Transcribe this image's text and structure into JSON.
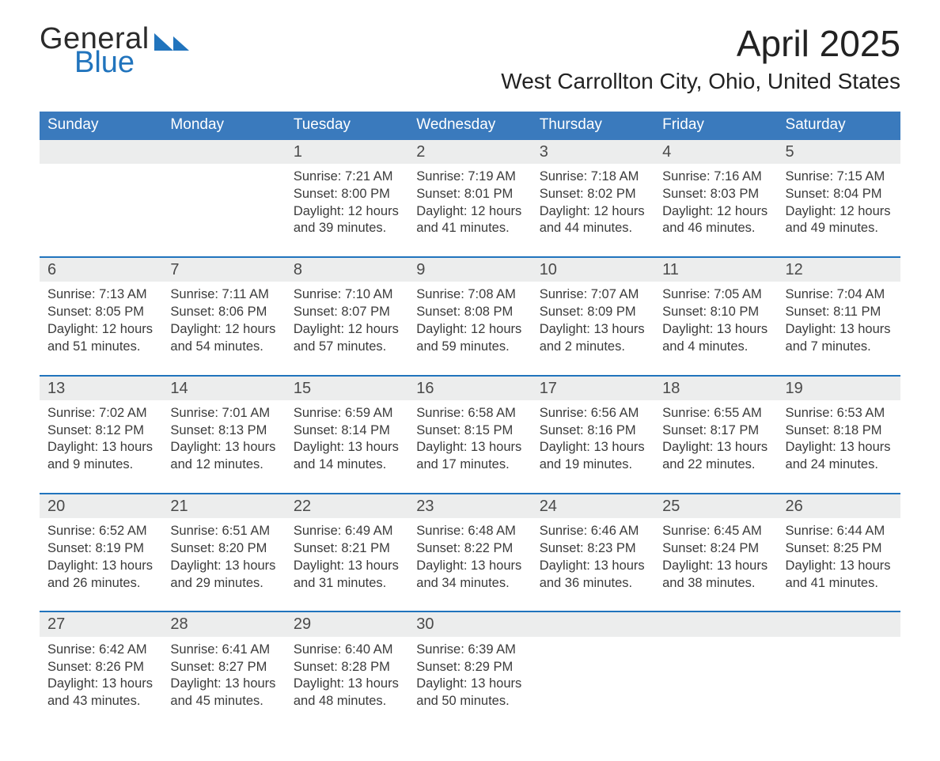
{
  "colors": {
    "header_blue": "#3a7abd",
    "accent_blue": "#2174bd",
    "row_stripe": "#eceded",
    "page_bg": "#ffffff",
    "text_black": "#232323",
    "text_gray": "#3b3b3b"
  },
  "logo": {
    "word1": "General",
    "word2": "Blue"
  },
  "month_title": "April 2025",
  "location": "West Carrollton City, Ohio, United States",
  "weekday_headers": [
    "Sunday",
    "Monday",
    "Tuesday",
    "Wednesday",
    "Thursday",
    "Friday",
    "Saturday"
  ],
  "labels": {
    "sunrise_prefix": "Sunrise: ",
    "sunset_prefix": "Sunset: ",
    "daylight_prefix": "Daylight: ",
    "daylight_middle": " hours",
    "daylight_and": "and ",
    "daylight_suffix": " minutes."
  },
  "weeks": [
    [
      null,
      null,
      {
        "day": "1",
        "sunrise": "7:21 AM",
        "sunset": "8:00 PM",
        "hrs": "12",
        "min": "39"
      },
      {
        "day": "2",
        "sunrise": "7:19 AM",
        "sunset": "8:01 PM",
        "hrs": "12",
        "min": "41"
      },
      {
        "day": "3",
        "sunrise": "7:18 AM",
        "sunset": "8:02 PM",
        "hrs": "12",
        "min": "44"
      },
      {
        "day": "4",
        "sunrise": "7:16 AM",
        "sunset": "8:03 PM",
        "hrs": "12",
        "min": "46"
      },
      {
        "day": "5",
        "sunrise": "7:15 AM",
        "sunset": "8:04 PM",
        "hrs": "12",
        "min": "49"
      }
    ],
    [
      {
        "day": "6",
        "sunrise": "7:13 AM",
        "sunset": "8:05 PM",
        "hrs": "12",
        "min": "51"
      },
      {
        "day": "7",
        "sunrise": "7:11 AM",
        "sunset": "8:06 PM",
        "hrs": "12",
        "min": "54"
      },
      {
        "day": "8",
        "sunrise": "7:10 AM",
        "sunset": "8:07 PM",
        "hrs": "12",
        "min": "57"
      },
      {
        "day": "9",
        "sunrise": "7:08 AM",
        "sunset": "8:08 PM",
        "hrs": "12",
        "min": "59"
      },
      {
        "day": "10",
        "sunrise": "7:07 AM",
        "sunset": "8:09 PM",
        "hrs": "13",
        "min": "2"
      },
      {
        "day": "11",
        "sunrise": "7:05 AM",
        "sunset": "8:10 PM",
        "hrs": "13",
        "min": "4"
      },
      {
        "day": "12",
        "sunrise": "7:04 AM",
        "sunset": "8:11 PM",
        "hrs": "13",
        "min": "7"
      }
    ],
    [
      {
        "day": "13",
        "sunrise": "7:02 AM",
        "sunset": "8:12 PM",
        "hrs": "13",
        "min": "9"
      },
      {
        "day": "14",
        "sunrise": "7:01 AM",
        "sunset": "8:13 PM",
        "hrs": "13",
        "min": "12"
      },
      {
        "day": "15",
        "sunrise": "6:59 AM",
        "sunset": "8:14 PM",
        "hrs": "13",
        "min": "14"
      },
      {
        "day": "16",
        "sunrise": "6:58 AM",
        "sunset": "8:15 PM",
        "hrs": "13",
        "min": "17"
      },
      {
        "day": "17",
        "sunrise": "6:56 AM",
        "sunset": "8:16 PM",
        "hrs": "13",
        "min": "19"
      },
      {
        "day": "18",
        "sunrise": "6:55 AM",
        "sunset": "8:17 PM",
        "hrs": "13",
        "min": "22"
      },
      {
        "day": "19",
        "sunrise": "6:53 AM",
        "sunset": "8:18 PM",
        "hrs": "13",
        "min": "24"
      }
    ],
    [
      {
        "day": "20",
        "sunrise": "6:52 AM",
        "sunset": "8:19 PM",
        "hrs": "13",
        "min": "26"
      },
      {
        "day": "21",
        "sunrise": "6:51 AM",
        "sunset": "8:20 PM",
        "hrs": "13",
        "min": "29"
      },
      {
        "day": "22",
        "sunrise": "6:49 AM",
        "sunset": "8:21 PM",
        "hrs": "13",
        "min": "31"
      },
      {
        "day": "23",
        "sunrise": "6:48 AM",
        "sunset": "8:22 PM",
        "hrs": "13",
        "min": "34"
      },
      {
        "day": "24",
        "sunrise": "6:46 AM",
        "sunset": "8:23 PM",
        "hrs": "13",
        "min": "36"
      },
      {
        "day": "25",
        "sunrise": "6:45 AM",
        "sunset": "8:24 PM",
        "hrs": "13",
        "min": "38"
      },
      {
        "day": "26",
        "sunrise": "6:44 AM",
        "sunset": "8:25 PM",
        "hrs": "13",
        "min": "41"
      }
    ],
    [
      {
        "day": "27",
        "sunrise": "6:42 AM",
        "sunset": "8:26 PM",
        "hrs": "13",
        "min": "43"
      },
      {
        "day": "28",
        "sunrise": "6:41 AM",
        "sunset": "8:27 PM",
        "hrs": "13",
        "min": "45"
      },
      {
        "day": "29",
        "sunrise": "6:40 AM",
        "sunset": "8:28 PM",
        "hrs": "13",
        "min": "48"
      },
      {
        "day": "30",
        "sunrise": "6:39 AM",
        "sunset": "8:29 PM",
        "hrs": "13",
        "min": "50"
      },
      null,
      null,
      null
    ]
  ]
}
